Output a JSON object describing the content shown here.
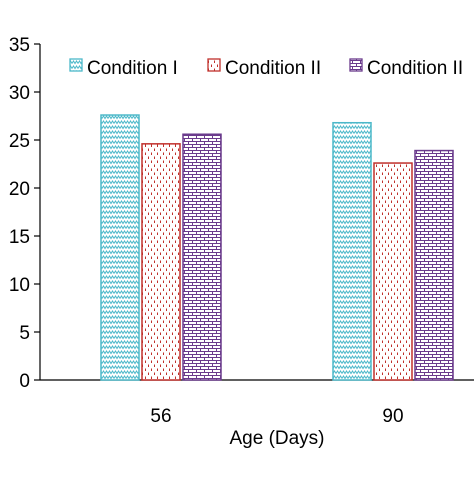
{
  "chart_data": {
    "type": "bar",
    "categories": [
      "56",
      "90"
    ],
    "xlabel": "Age (Days)",
    "ylabel": "",
    "ylim": [
      0,
      35
    ],
    "yticks": [
      "0",
      "5",
      "10",
      "15",
      "20",
      "25",
      "30",
      "35"
    ],
    "grid": false,
    "legend": "top",
    "series": [
      {
        "name": "Condition I",
        "values": [
          27.6,
          26.8
        ],
        "color": "#4bb8c9",
        "pattern": "zigzag"
      },
      {
        "name": "Condition II",
        "values": [
          24.6,
          22.6
        ],
        "color": "#c0302b",
        "pattern": "dashes"
      },
      {
        "name": "Condition II",
        "values": [
          25.6,
          23.9
        ],
        "color": "#6a3a8c",
        "pattern": "brick"
      }
    ]
  }
}
